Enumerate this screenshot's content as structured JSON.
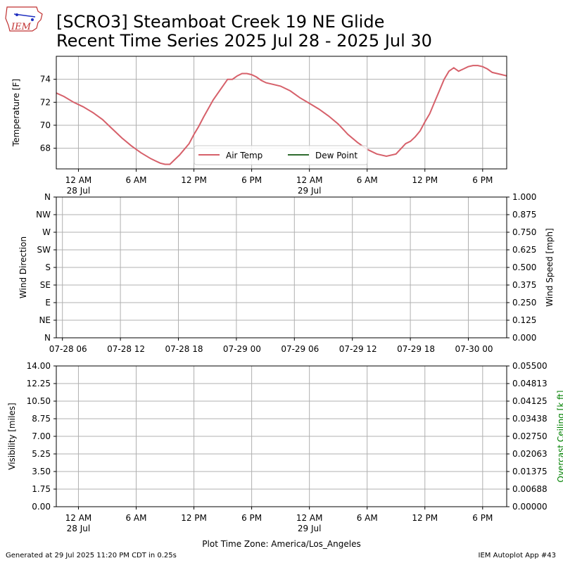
{
  "header": {
    "title_line1": "[SCRO3] Steamboat Creek 19 NE Glide",
    "title_line2": "Recent Time Series 2025 Jul 28 - 2025 Jul 30",
    "logo_text": "IEM"
  },
  "footer": {
    "generated": "Generated at 29 Jul 2025 11:20 PM CDT in 0.25s",
    "app": "IEM Autoplot App #43"
  },
  "colors": {
    "air_temp": "#d6606a",
    "dew_point": "#2e6b2e",
    "grid": "#b0b0b0",
    "ceiling_label": "#008000"
  },
  "chart_data": [
    {
      "type": "line",
      "ylabel": "Temperature [F]",
      "ylim": [
        66.2,
        76.0
      ],
      "yticks": [
        68,
        70,
        72,
        74
      ],
      "xticks": [
        {
          "h": 0,
          "label": "12 AM",
          "sub": "28 Jul"
        },
        {
          "h": 6,
          "label": "6 AM",
          "sub": ""
        },
        {
          "h": 12,
          "label": "12 PM",
          "sub": ""
        },
        {
          "h": 18,
          "label": "6 PM",
          "sub": ""
        },
        {
          "h": 24,
          "label": "12 AM",
          "sub": "29 Jul"
        },
        {
          "h": 30,
          "label": "6 AM",
          "sub": ""
        },
        {
          "h": 36,
          "label": "12 PM",
          "sub": ""
        },
        {
          "h": 42,
          "label": "6 PM",
          "sub": ""
        }
      ],
      "xlim_hours": [
        -2.3,
        44.5
      ],
      "grid": true,
      "legend": "lower center",
      "series": [
        {
          "name": "Air Temp",
          "x_hours": [
            -2.3,
            -1.5,
            -0.5,
            0.5,
            1.5,
            2.5,
            3.5,
            4.5,
            5.5,
            6.5,
            7.5,
            8.0,
            8.5,
            9.0,
            9.5,
            10.0,
            10.5,
            11.0,
            11.5,
            12.0,
            12.5,
            13.0,
            14.0,
            15.0,
            15.5,
            16.0,
            16.5,
            17.0,
            17.5,
            18.0,
            18.5,
            19.0,
            19.5,
            20.0,
            21.0,
            22.0,
            23.0,
            24.0,
            25.0,
            26.0,
            27.0,
            28.0,
            29.0,
            30.0,
            31.0,
            32.0,
            33.0,
            34.0,
            34.5,
            35.0,
            35.5,
            36.0,
            36.5,
            37.0,
            37.5,
            38.0,
            38.5,
            39.0,
            39.5,
            40.0,
            40.5,
            41.0,
            41.5,
            42.0,
            42.5,
            43.0,
            43.5,
            44.0,
            44.5
          ],
          "values": [
            72.8,
            72.5,
            72.0,
            71.6,
            71.1,
            70.5,
            69.7,
            68.9,
            68.2,
            67.6,
            67.1,
            66.9,
            66.7,
            66.6,
            66.6,
            67.0,
            67.4,
            67.9,
            68.4,
            69.2,
            69.9,
            70.7,
            72.2,
            73.4,
            74.0,
            74.0,
            74.3,
            74.5,
            74.5,
            74.4,
            74.2,
            73.9,
            73.7,
            73.6,
            73.4,
            73.0,
            72.4,
            71.9,
            71.4,
            70.8,
            70.1,
            69.2,
            68.5,
            67.9,
            67.5,
            67.3,
            67.5,
            68.4,
            68.6,
            69.0,
            69.5,
            70.3,
            71.0,
            72.0,
            73.0,
            74.0,
            74.7,
            75.0,
            74.7,
            74.9,
            75.1,
            75.2,
            75.2,
            75.1,
            74.9,
            74.6,
            74.5,
            74.4,
            74.3
          ]
        },
        {
          "name": "Dew Point",
          "x_hours": [],
          "values": []
        }
      ]
    },
    {
      "type": "scatter",
      "ylabel": "Wind Direction",
      "y2label": "Wind Speed [mph]",
      "yticks": [
        "N",
        "NE",
        "E",
        "SE",
        "S",
        "SW",
        "W",
        "NW",
        "N"
      ],
      "y2ticks": [
        "0.000",
        "0.125",
        "0.250",
        "0.375",
        "0.500",
        "0.625",
        "0.750",
        "0.875",
        "1.000"
      ],
      "xticks": [
        "07-28 06",
        "07-28 12",
        "07-28 18",
        "07-29 00",
        "07-29 06",
        "07-29 12",
        "07-29 18",
        "07-30 00"
      ],
      "xlim_hours": [
        -2.3,
        44.5
      ],
      "grid": true,
      "series": []
    },
    {
      "type": "line",
      "ylabel": "Visibility [miles]",
      "y2label": "Overcast Ceiling [k ft]",
      "yticks": [
        "0.00",
        "1.75",
        "3.50",
        "5.25",
        "7.00",
        "8.75",
        "10.50",
        "12.25",
        "14.00"
      ],
      "y2ticks": [
        "0.00000",
        "0.00688",
        "0.01375",
        "0.02063",
        "0.02750",
        "0.03438",
        "0.04125",
        "0.04813",
        "0.05500"
      ],
      "xticks": [
        {
          "label": "12 AM",
          "sub": "28 Jul"
        },
        {
          "label": "6 AM",
          "sub": ""
        },
        {
          "label": "12 PM",
          "sub": ""
        },
        {
          "label": "6 PM",
          "sub": ""
        },
        {
          "label": "12 AM",
          "sub": "29 Jul"
        },
        {
          "label": "6 AM",
          "sub": ""
        },
        {
          "label": "12 PM",
          "sub": ""
        },
        {
          "label": "6 PM",
          "sub": ""
        }
      ],
      "xlabel": "Plot Time Zone: America/Los_Angeles",
      "xlim_hours": [
        -2.3,
        44.5
      ],
      "grid": true,
      "series": []
    }
  ]
}
